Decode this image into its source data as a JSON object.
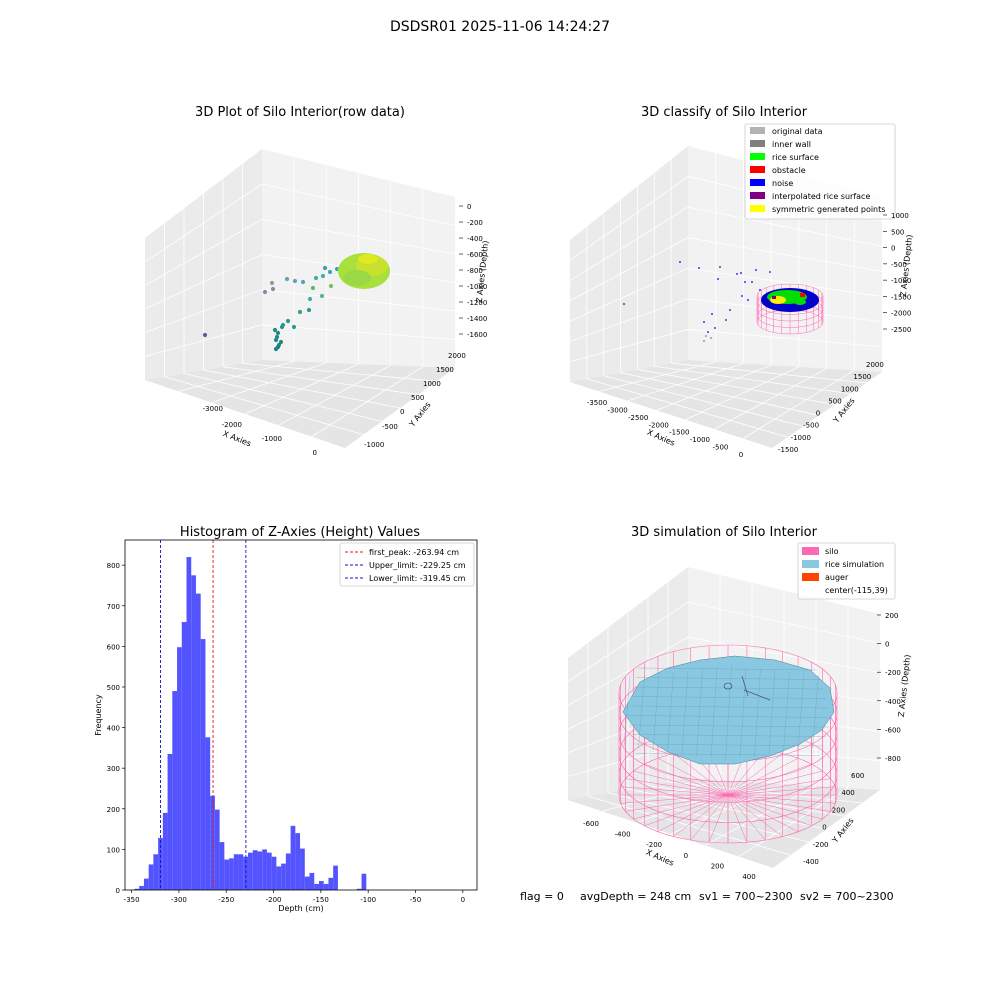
{
  "figure": {
    "suptitle": "DSDSR01 2025-11-06 14:24:27",
    "status": {
      "flag": "flag = 0",
      "avg_depth": "avgDepth = 248 cm",
      "sv1": "sv1 = 700~2300",
      "sv2": "sv2 = 700~2300"
    }
  },
  "colors": {
    "hist_bar": "#4b4bff",
    "peak_line": "#e31a1c",
    "limit_line": "#1010c8",
    "silo_wire": "#ff69b4",
    "rice_sim": "#89c8e0",
    "auger": "#ff4500",
    "pane_left": "#ebebeb",
    "pane_right": "#f2f2f2",
    "pane_floor": "#e5e5e5"
  },
  "chart_data": [
    {
      "type": "scatter",
      "projection": "3d",
      "title": "3D Plot of Silo Interior(row data)",
      "xlabel": "X Axies",
      "ylabel": "Y Axies",
      "zlabel": "Z Axies (Depth)",
      "x_ticks": [
        "-3000",
        "-2000",
        "-1000",
        "0"
      ],
      "y_ticks": [
        "-1000",
        "-500",
        "0",
        "500",
        "1000",
        "1500",
        "2000"
      ],
      "z_ticks": [
        "0",
        "-200",
        "-400",
        "-600",
        "-800",
        "-1000",
        "-1200",
        "-1400",
        "-1600"
      ],
      "colormap": "viridis",
      "grid": true
    },
    {
      "type": "scatter",
      "projection": "3d",
      "title": "3D classify of Silo Interior",
      "xlabel": "X Axies",
      "ylabel": "Y Axies",
      "zlabel": "Z Axies (Depth)",
      "x_ticks": [
        "-3500",
        "-3000",
        "-2500",
        "-2000",
        "-1500",
        "-1000",
        "-500",
        "0"
      ],
      "y_ticks": [
        "-1500",
        "-1000",
        "-500",
        "0",
        "500",
        "1000",
        "1500",
        "2000"
      ],
      "z_ticks": [
        "1000",
        "500",
        "0",
        "-500",
        "-1000",
        "-1500",
        "-2000",
        "-2500"
      ],
      "legend_position": "top-right",
      "legend": [
        {
          "label": "original data",
          "color": "#b3b3b3"
        },
        {
          "label": "inner wall",
          "color": "#808080"
        },
        {
          "label": "rice surface",
          "color": "#00ff00"
        },
        {
          "label": "obstacle",
          "color": "#ff0000"
        },
        {
          "label": "noise",
          "color": "#0000ff"
        },
        {
          "label": "interpolated rice surface",
          "color": "#800080"
        },
        {
          "label": "symmetric generated points",
          "color": "#ffff00"
        }
      ],
      "grid": true
    },
    {
      "type": "bar",
      "title": "Histogram of Z-Axies (Height) Values",
      "xlabel": "Depth (cm)",
      "ylabel": "Frequency",
      "xlim": [
        -357,
        15
      ],
      "ylim": [
        0,
        862
      ],
      "x_ticks": [
        -350,
        -300,
        -250,
        -200,
        -150,
        -100,
        -50,
        0
      ],
      "y_ticks": [
        0,
        100,
        200,
        300,
        400,
        500,
        600,
        700,
        800
      ],
      "bin_width": 5,
      "bin_start": -347,
      "values": [
        3,
        10,
        28,
        63,
        88,
        128,
        190,
        335,
        490,
        598,
        660,
        820,
        775,
        730,
        618,
        376,
        232,
        198,
        118,
        75,
        78,
        88,
        88,
        82,
        92,
        98,
        95,
        100,
        92,
        82,
        58,
        65,
        90,
        158,
        140,
        102,
        33,
        42,
        15,
        22,
        15,
        30,
        60,
        0,
        0,
        0,
        0,
        3,
        40,
        0
      ],
      "reference_lines": [
        {
          "label": "first_peak: -263.94 cm",
          "value": -263.94,
          "color": "#e31a1c"
        },
        {
          "label": "Upper_limit: -229.25 cm",
          "value": -229.25,
          "color": "#1010c8"
        },
        {
          "label": "Lower_limit: -319.45 cm",
          "value": -319.45,
          "color": "#1010c8"
        }
      ],
      "legend_position": "top-right",
      "grid": false
    },
    {
      "type": "area",
      "projection": "3d",
      "title": "3D simulation of Silo Interior",
      "xlabel": "X Axies",
      "ylabel": "Y Axies",
      "zlabel": "Z Axies (Depth)",
      "x_ticks": [
        "-600",
        "-400",
        "-200",
        "0",
        "200",
        "400"
      ],
      "y_ticks": [
        "-400",
        "-200",
        "0",
        "200",
        "400",
        "600"
      ],
      "z_ticks": [
        "200",
        "0",
        "-200",
        "-400",
        "-600",
        "-800"
      ],
      "legend_position": "top-right",
      "legend": [
        {
          "label": "silo",
          "color": "#ff69b4"
        },
        {
          "label": "rice simulation",
          "color": "#89c8e0"
        },
        {
          "label": "auger",
          "color": "#ff4500"
        },
        {
          "label": "center(-115,39)",
          "color": ""
        }
      ],
      "grid": true
    }
  ]
}
